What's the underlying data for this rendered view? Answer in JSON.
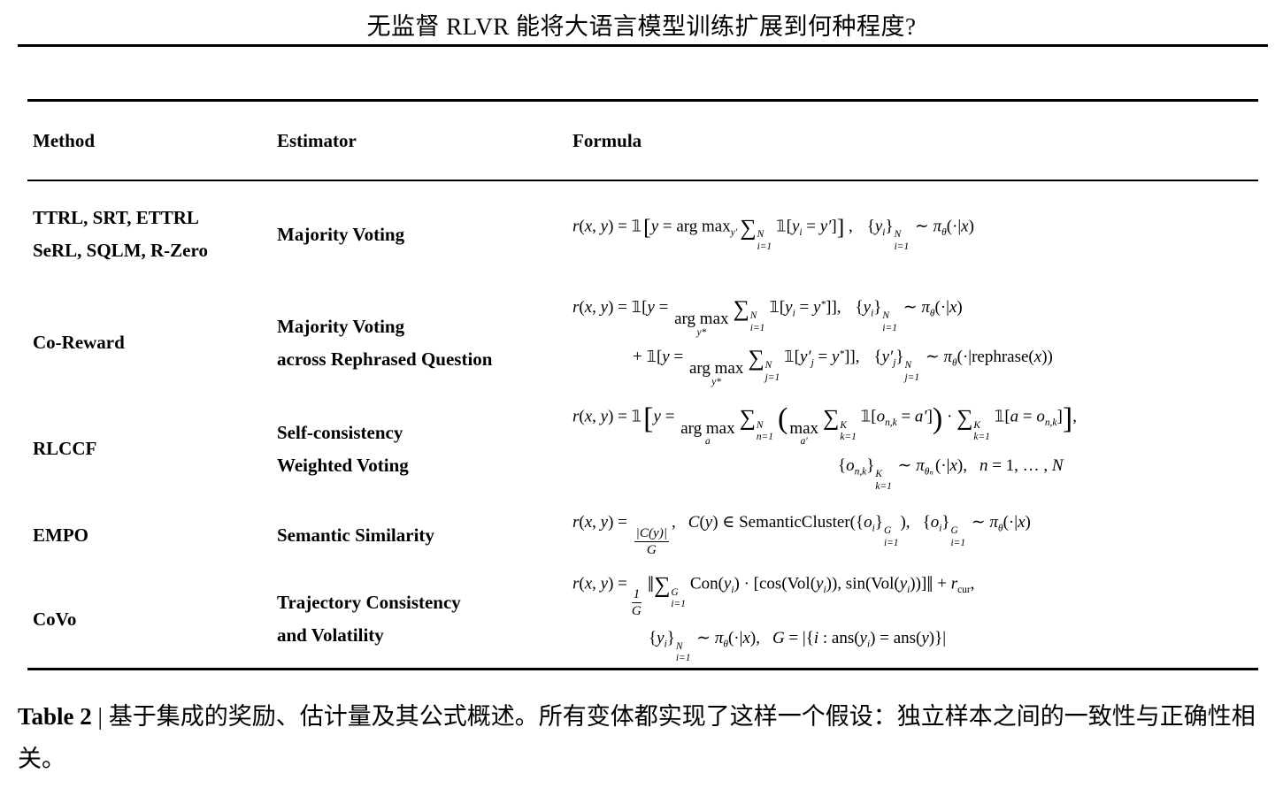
{
  "header": {
    "title": "无监督 RLVR 能将大语言模型训练扩展到何种程度?"
  },
  "table": {
    "columns": [
      "Method",
      "Estimator",
      "Formula"
    ],
    "rows": [
      {
        "method": "TTRL, SRT, ETTRL\nSeRL, SQLM, R-Zero",
        "estimator": "Majority Voting",
        "formula_lines": [
          [
            {
              "v": "r"
            },
            {
              "r": "("
            },
            {
              "v": "x"
            },
            {
              "r": ", "
            },
            {
              "v": "y"
            },
            {
              "r": ") = "
            },
            {
              "bb": "𝟙"
            },
            {
              "gap": 2
            },
            {
              "big": "["
            },
            {
              "v": "y"
            },
            {
              "r": " = arg max"
            },
            {
              "sub": "y′"
            },
            {
              "gap": 3
            },
            {
              "sg": "∑"
            },
            {
              "ss": {
                "sup": "N",
                "sub": "i=1"
              }
            },
            {
              "gap": 3
            },
            {
              "bb": "𝟙"
            },
            {
              "r": "["
            },
            {
              "v": "y"
            },
            {
              "sub": "i"
            },
            {
              "r": " = "
            },
            {
              "v": "y′"
            },
            {
              "r": "]"
            },
            {
              "big": "]"
            },
            {
              "r": " ,"
            },
            {
              "gap": 16
            },
            {
              "r": "{"
            },
            {
              "v": "y"
            },
            {
              "sub": "i"
            },
            {
              "r": "}"
            },
            {
              "ss": {
                "sup": "N",
                "sub": "i=1"
              }
            },
            {
              "r": " ∼ "
            },
            {
              "v": "π"
            },
            {
              "sub": "θ"
            },
            {
              "r": "(·|"
            },
            {
              "v": "x"
            },
            {
              "r": ")"
            }
          ]
        ]
      },
      {
        "method": "Co-Reward",
        "estimator": "Majority Voting\nacross Rephrased Question",
        "formula_lines": [
          [
            {
              "v": "r"
            },
            {
              "r": "("
            },
            {
              "v": "x"
            },
            {
              "r": ", "
            },
            {
              "v": "y"
            },
            {
              "r": ") = "
            },
            {
              "bb": "𝟙"
            },
            {
              "r": "["
            },
            {
              "v": "y"
            },
            {
              "r": " = "
            },
            {
              "un": {
                "base": "arg max",
                "under": "y*"
              }
            },
            {
              "gap": 3
            },
            {
              "sg": "∑"
            },
            {
              "ss": {
                "sup": "N",
                "sub": "i=1"
              }
            },
            {
              "gap": 3
            },
            {
              "bb": "𝟙"
            },
            {
              "r": "["
            },
            {
              "v": "y"
            },
            {
              "sub": "i"
            },
            {
              "r": " = "
            },
            {
              "v": "y"
            },
            {
              "sup": "*"
            },
            {
              "r": "]],"
            },
            {
              "gap": 16
            },
            {
              "r": "{"
            },
            {
              "v": "y"
            },
            {
              "sub": "i"
            },
            {
              "r": "}"
            },
            {
              "ss": {
                "sup": "N",
                "sub": "i=1"
              }
            },
            {
              "r": " ∼ "
            },
            {
              "v": "π"
            },
            {
              "sub": "θ"
            },
            {
              "r": "(·|"
            },
            {
              "v": "x"
            },
            {
              "r": ")"
            }
          ],
          [
            {
              "r": "+ "
            },
            {
              "bb": "𝟙"
            },
            {
              "r": "["
            },
            {
              "v": "y"
            },
            {
              "r": " = "
            },
            {
              "un": {
                "base": "arg max",
                "under": "y*"
              }
            },
            {
              "gap": 3
            },
            {
              "sg": "∑"
            },
            {
              "ss": {
                "sup": "N",
                "sub": "j=1"
              }
            },
            {
              "gap": 3
            },
            {
              "bb": "𝟙"
            },
            {
              "r": "["
            },
            {
              "v": "y′"
            },
            {
              "sub": "j"
            },
            {
              "r": " = "
            },
            {
              "v": "y"
            },
            {
              "sup": "*"
            },
            {
              "r": "]],"
            },
            {
              "gap": 16
            },
            {
              "r": "{"
            },
            {
              "v": "y′"
            },
            {
              "sub": "j"
            },
            {
              "r": "}"
            },
            {
              "ss": {
                "sup": "N",
                "sub": "j=1"
              }
            },
            {
              "r": " ∼ "
            },
            {
              "v": "π"
            },
            {
              "sub": "θ"
            },
            {
              "r": "(·|rephrase("
            },
            {
              "v": "x"
            },
            {
              "r": "))"
            }
          ]
        ]
      },
      {
        "method": "RLCCF",
        "estimator": "Self-consistency\nWeighted Voting",
        "formula_lines": [
          [
            {
              "v": "r"
            },
            {
              "r": "("
            },
            {
              "v": "x"
            },
            {
              "r": ", "
            },
            {
              "v": "y"
            },
            {
              "r": ") = "
            },
            {
              "bb": "𝟙"
            },
            {
              "gap": 2
            },
            {
              "Big": "["
            },
            {
              "v": "y"
            },
            {
              "r": " = "
            },
            {
              "un": {
                "base": "arg max",
                "under": "a"
              }
            },
            {
              "gap": 3
            },
            {
              "sg": "∑"
            },
            {
              "ss": {
                "sup": "N",
                "sub": "n=1"
              }
            },
            {
              "gap": 3
            },
            {
              "Big": "("
            },
            {
              "un": {
                "base": "max",
                "under": "a′"
              }
            },
            {
              "gap": 3
            },
            {
              "sg": "∑"
            },
            {
              "ss": {
                "sup": "K",
                "sub": "k=1"
              }
            },
            {
              "gap": 3
            },
            {
              "bb": "𝟙"
            },
            {
              "r": "["
            },
            {
              "v": "o"
            },
            {
              "sub": "n,k"
            },
            {
              "r": " = "
            },
            {
              "v": "a′"
            },
            {
              "r": "]"
            },
            {
              "Big": ")"
            },
            {
              "r": " · "
            },
            {
              "sg": "∑"
            },
            {
              "ss": {
                "sup": "K",
                "sub": "k=1"
              }
            },
            {
              "gap": 3
            },
            {
              "bb": "𝟙"
            },
            {
              "r": "["
            },
            {
              "v": "a"
            },
            {
              "r": " = "
            },
            {
              "v": "o"
            },
            {
              "sub": "n,k"
            },
            {
              "r": "]"
            },
            {
              "Big": "]"
            },
            {
              "r": ","
            }
          ],
          [
            {
              "r": "{"
            },
            {
              "v": "o"
            },
            {
              "sub": "n,k"
            },
            {
              "r": "}"
            },
            {
              "ss": {
                "sup": "K",
                "sub": "k=1"
              }
            },
            {
              "r": " ∼ "
            },
            {
              "v": "π"
            },
            {
              "sub": "θₙ"
            },
            {
              "gap": 2
            },
            {
              "r": "(·|"
            },
            {
              "v": "x"
            },
            {
              "r": "),"
            },
            {
              "gap": 14
            },
            {
              "v": "n"
            },
            {
              "r": " = 1, … , "
            },
            {
              "v": "N"
            }
          ]
        ]
      },
      {
        "method": "EMPO",
        "estimator": "Semantic Similarity",
        "formula_lines": [
          [
            {
              "v": "r"
            },
            {
              "r": "("
            },
            {
              "v": "x"
            },
            {
              "r": ", "
            },
            {
              "v": "y"
            },
            {
              "r": ") = "
            },
            {
              "frac": {
                "n": "|C(y)|",
                "d": "G"
              }
            },
            {
              "r": ","
            },
            {
              "gap": 14
            },
            {
              "v": "C"
            },
            {
              "r": "("
            },
            {
              "v": "y"
            },
            {
              "r": ") ∈ SemanticCluster({"
            },
            {
              "v": "o"
            },
            {
              "sub": "i"
            },
            {
              "r": "}"
            },
            {
              "ss": {
                "sup": "G",
                "sub": "i=1"
              }
            },
            {
              "r": "),"
            },
            {
              "gap": 14
            },
            {
              "r": "{"
            },
            {
              "v": "o"
            },
            {
              "sub": "i"
            },
            {
              "r": "}"
            },
            {
              "ss": {
                "sup": "G",
                "sub": "i=1"
              }
            },
            {
              "r": " ∼ "
            },
            {
              "v": "π"
            },
            {
              "sub": "θ"
            },
            {
              "r": "(·|"
            },
            {
              "v": "x"
            },
            {
              "r": ")"
            }
          ]
        ]
      },
      {
        "method": "CoVo",
        "estimator": "Trajectory Consistency\nand Volatility",
        "formula_lines": [
          [
            {
              "v": "r"
            },
            {
              "r": "("
            },
            {
              "v": "x"
            },
            {
              "r": ", "
            },
            {
              "v": "y"
            },
            {
              "r": ") ="
            },
            {
              "frac": {
                "n": "1",
                "d": "G"
              }
            },
            {
              "gap": 2
            },
            {
              "big": "‖"
            },
            {
              "sg": "∑"
            },
            {
              "ss": {
                "sup": "G",
                "sub": "i=1"
              }
            },
            {
              "gap": 3
            },
            {
              "r": "Con("
            },
            {
              "v": "y"
            },
            {
              "sub": "i"
            },
            {
              "r": ") · [cos(Vol("
            },
            {
              "v": "y"
            },
            {
              "sub": "i"
            },
            {
              "r": ")), sin(Vol("
            },
            {
              "v": "y"
            },
            {
              "sub": "i"
            },
            {
              "r": "))]"
            },
            {
              "big": "‖"
            },
            {
              "r": " + "
            },
            {
              "v": "r"
            },
            {
              "sub": "cur",
              "rm": true
            },
            {
              "r": ","
            }
          ],
          [
            {
              "r": "{"
            },
            {
              "v": "y"
            },
            {
              "sub": "i"
            },
            {
              "r": "}"
            },
            {
              "ss": {
                "sup": "N",
                "sub": "i=1"
              }
            },
            {
              "r": " ∼ "
            },
            {
              "v": "π"
            },
            {
              "sub": "θ"
            },
            {
              "r": "(·|"
            },
            {
              "v": "x"
            },
            {
              "r": "),"
            },
            {
              "gap": 14
            },
            {
              "v": "G"
            },
            {
              "r": " = |{"
            },
            {
              "v": "i"
            },
            {
              "r": " : ans("
            },
            {
              "v": "y"
            },
            {
              "sub": "i"
            },
            {
              "r": ") = ans("
            },
            {
              "v": "y"
            },
            {
              "r": ")}|"
            }
          ]
        ]
      }
    ]
  },
  "caption": {
    "label": "Table 2",
    "text": " | 基于集成的奖励、估计量及其公式概述。所有变体都实现了这样一个假设：独立样本之间的一致性与正确性相关。"
  }
}
